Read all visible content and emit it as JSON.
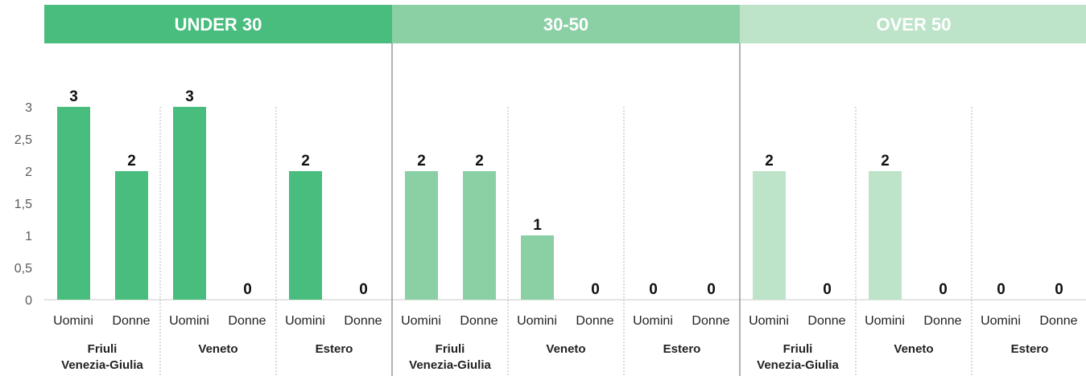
{
  "chart_data": {
    "type": "bar",
    "age_groups": [
      {
        "label": "UNDER 30",
        "color": "#48bd7e"
      },
      {
        "label": "30-50",
        "color": "#8bd0a5"
      },
      {
        "label": "OVER 50",
        "color": "#bde3c9"
      }
    ],
    "regions": [
      "Friuli\nVenezia-Giulia",
      "Veneto",
      "Estero"
    ],
    "genders": [
      "Uomini",
      "Donne"
    ],
    "values": [
      [
        [
          3,
          2
        ],
        [
          3,
          0
        ],
        [
          2,
          0
        ]
      ],
      [
        [
          2,
          2
        ],
        [
          1,
          0
        ],
        [
          0,
          0
        ]
      ],
      [
        [
          2,
          0
        ],
        [
          2,
          0
        ],
        [
          0,
          0
        ]
      ]
    ],
    "ylim": [
      0,
      3
    ],
    "yticks": [
      "0",
      "0,5",
      "1",
      "1,5",
      "2",
      "2,5",
      "3"
    ]
  }
}
